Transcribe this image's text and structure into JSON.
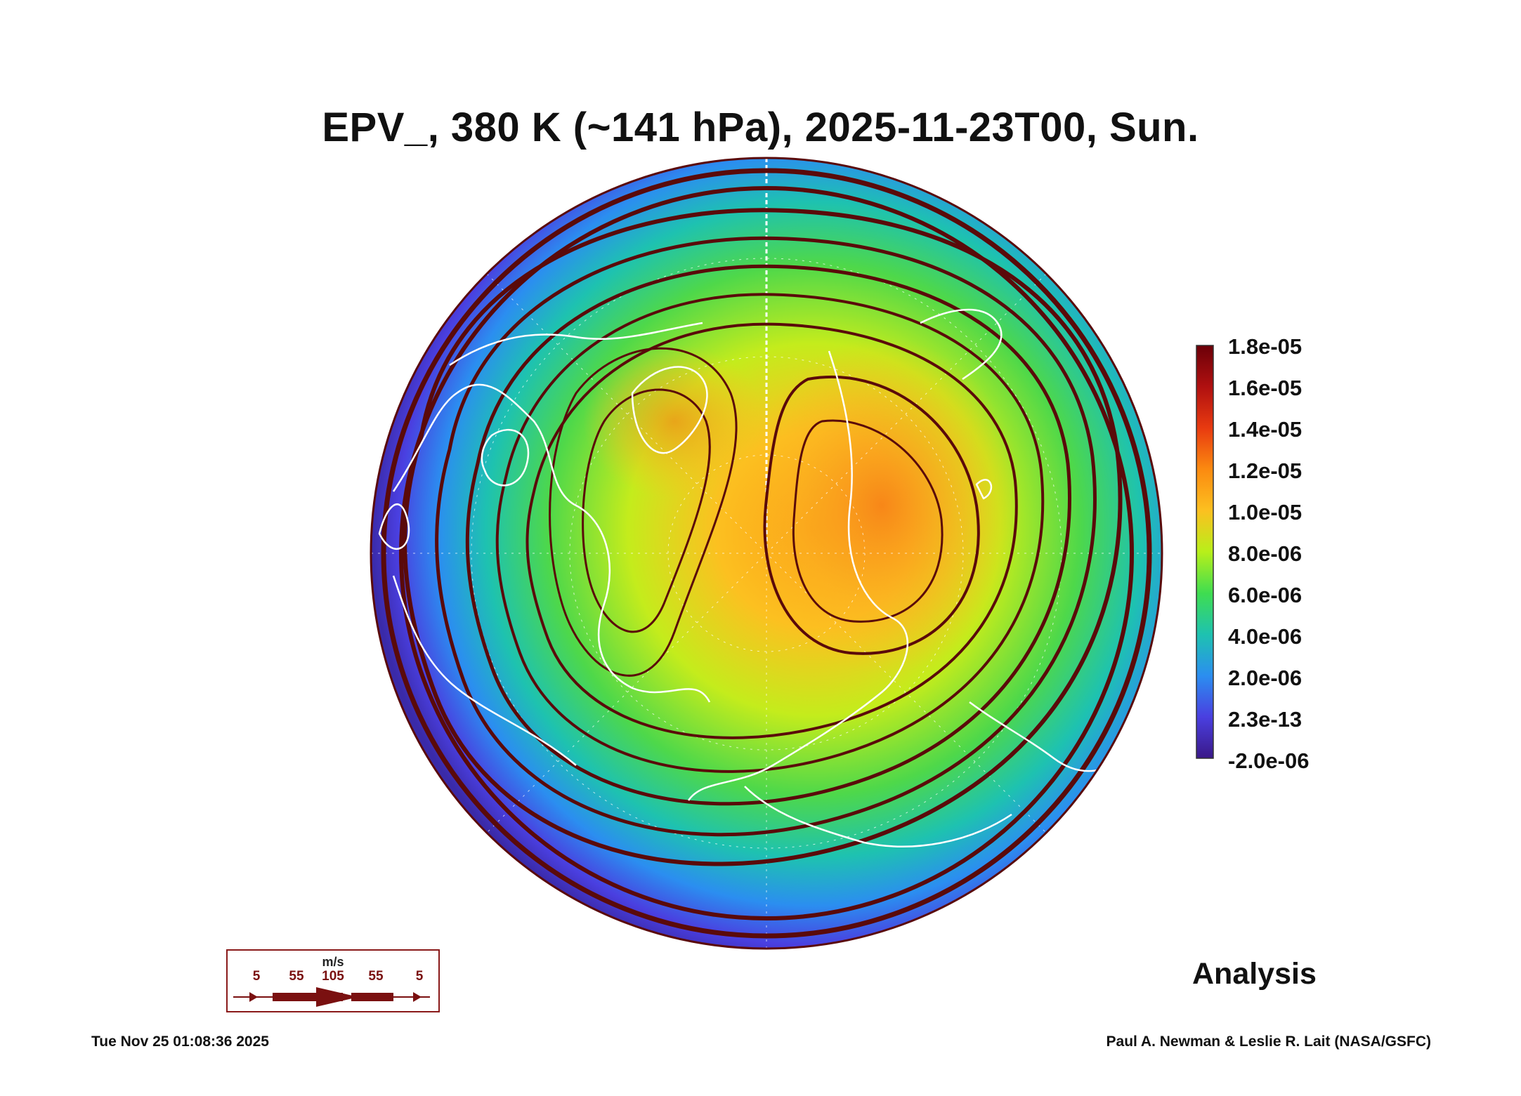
{
  "title": "EPV_, 380 K (~141 hPa), 2025-11-23T00, Sun.",
  "colorbar": {
    "labels": [
      "1.8e-05",
      "1.6e-05",
      "1.4e-05",
      "1.2e-05",
      "1.0e-05",
      "8.0e-06",
      "6.0e-06",
      "4.0e-06",
      "2.0e-06",
      "2.3e-13",
      "-2.0e-06"
    ],
    "colors": [
      "#6b0008",
      "#b01010",
      "#e83a10",
      "#fb8a10",
      "#fcc020",
      "#b8ef1a",
      "#3fdd50",
      "#1ec2b0",
      "#2b8ef0",
      "#4a3fe0",
      "#3a1888"
    ]
  },
  "label_analysis": "Analysis",
  "wind_legend": {
    "units": "m/s",
    "speeds": [
      "5",
      "55",
      "105",
      "55",
      "5"
    ]
  },
  "footer": {
    "timestamp": "Tue Nov 25 01:08:36 2025",
    "credit": "Paul A. Newman & Leslie R. Lait (NASA/GSFC)"
  },
  "colors": {
    "streamline": "#5a0a0a",
    "coast": "#ffffff",
    "text": "#111111"
  }
}
